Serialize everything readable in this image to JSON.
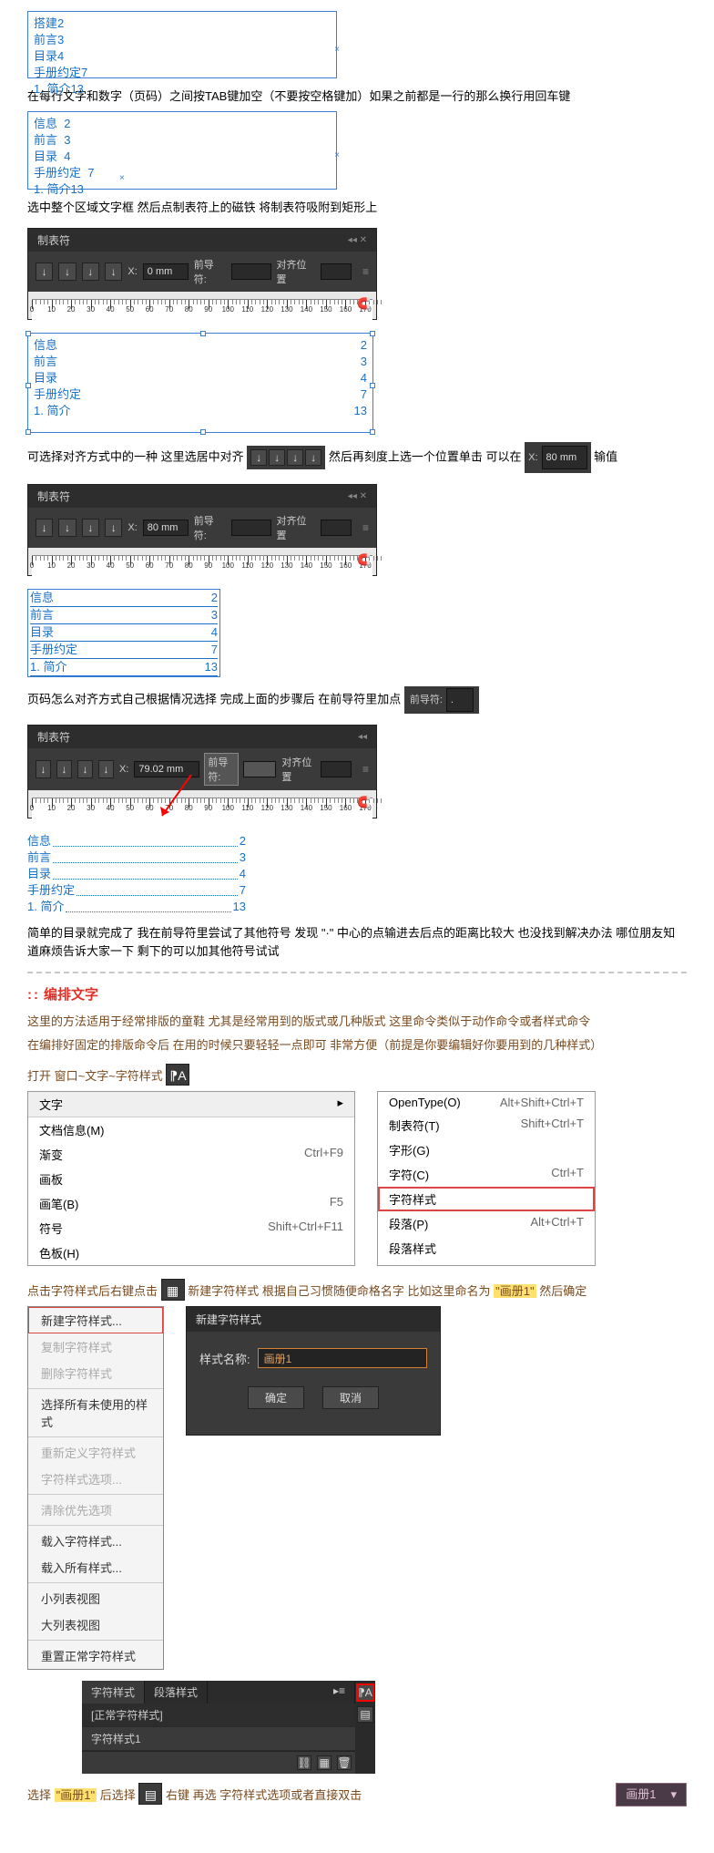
{
  "frame1": {
    "lines": [
      "搭建2",
      "前言3",
      "目录4",
      "手册约定7",
      "1. 简介13"
    ]
  },
  "para1": "在每行文字和数字（页码）之间按TAB键加空（不要按空格键加）如果之前都是一行的那么换行用回车键",
  "frame2": {
    "lines": [
      "信息  2",
      "前言  3",
      "目录  4",
      "手册约定  7",
      "1. 简介13"
    ]
  },
  "para2": "选中整个区域文字框 然后点制表符上的磁铁 将制表符吸附到矩形上",
  "tabpanel": {
    "title": "制表符",
    "x_label": "X:",
    "x_val_0": "0 mm",
    "leader_label": "前导符:",
    "alignpos_label": "对齐位置",
    "ruler_start": 0,
    "ruler_end": 170,
    "ruler_step": 10
  },
  "frame3": {
    "rows": [
      {
        "label": "信息",
        "page": "2"
      },
      {
        "label": "前言",
        "page": "3"
      },
      {
        "label": "目录",
        "page": "4"
      },
      {
        "label": "手册约定",
        "page": "7"
      },
      {
        "label": "1. 简介",
        "page": "13"
      }
    ]
  },
  "para3_start": "可选择对齐方式中的一种 这里选居中对齐",
  "para3_mid": "然后再刻度上选一个位置单击 可以在",
  "para3_end": "输值",
  "x_chip_val": "80 mm",
  "tabpanel2_xval": "80 mm",
  "frame4": {
    "rows": [
      {
        "label": "信息",
        "page": "2"
      },
      {
        "label": "前言",
        "page": "3"
      },
      {
        "label": "目录",
        "page": "4"
      },
      {
        "label": "手册约定",
        "page": "7"
      },
      {
        "label": "1. 简介",
        "page": "13"
      }
    ]
  },
  "para4": "页码怎么对齐方式自己根据情况选择  完成上面的步骤后 在前导符里加点",
  "leader_chip_label": "前导符:",
  "leader_chip_val": ".",
  "tabpanel3_xval": "79.02 mm",
  "frame5": {
    "rows": [
      {
        "label": "信息",
        "page": "2"
      },
      {
        "label": "前言",
        "page": "3"
      },
      {
        "label": "目录",
        "page": "4"
      },
      {
        "label": "手册约定",
        "page": "7"
      },
      {
        "label": "1. 简介",
        "page": "13"
      }
    ]
  },
  "para5": "简单的目录就完成了 我在前导符里尝试了其他符号 发现 \"·\" 中心的点输进去后点的距离比较大 也没找到解决办法 哪位朋友知道麻烦告诉大家一下 剩下的可以加其他符号试试",
  "heading_format": "编排文字",
  "para6_1": "这里的方法适用于经常排版的童鞋 尤其是经常用到的版式或几种版式 这里命令类似于动作命令或者样式命令",
  "para6_2": "在编排好固定的排版命令后 在用的时候只要轻轻一点即可 非常方便（前提是你要编辑好你要用到的几种样式）",
  "open_line": "打开  窗口~文字~字符样式",
  "menu_left": {
    "title": "文字",
    "items": [
      {
        "label": "文档信息(M)",
        "sc": ""
      },
      {
        "label": "渐变",
        "sc": "Ctrl+F9"
      },
      {
        "label": "画板",
        "sc": ""
      },
      {
        "label": "画笔(B)",
        "sc": "F5"
      },
      {
        "label": "符号",
        "sc": "Shift+Ctrl+F11"
      },
      {
        "label": "色板(H)",
        "sc": ""
      }
    ]
  },
  "menu_right": {
    "items": [
      {
        "label": "OpenType(O)",
        "sc": "Alt+Shift+Ctrl+T"
      },
      {
        "label": "制表符(T)",
        "sc": "Shift+Ctrl+T"
      },
      {
        "label": "字形(G)",
        "sc": ""
      },
      {
        "label": "字符(C)",
        "sc": "Ctrl+T"
      },
      {
        "label": "字符样式",
        "sc": "",
        "boxed": true
      },
      {
        "label": "段落(P)",
        "sc": "Alt+Ctrl+T"
      },
      {
        "label": "段落样式",
        "sc": ""
      }
    ]
  },
  "para7": "点击字符样式后右键点击",
  "para7_mid": "新建字符样式 根据自己习惯随便命格名字 比如这里命名为",
  "para7_name": "\"画册1\"",
  "para7_end": "然后确定",
  "ctx": {
    "items": [
      {
        "label": "新建字符样式...",
        "boxed": true
      },
      {
        "label": "复制字符样式",
        "disabled": true
      },
      {
        "label": "删除字符样式",
        "disabled": true
      },
      {
        "sep": true
      },
      {
        "label": "选择所有未使用的样式"
      },
      {
        "sep": true
      },
      {
        "label": "重新定义字符样式",
        "disabled": true
      },
      {
        "label": "字符样式选项...",
        "disabled": true
      },
      {
        "sep": true
      },
      {
        "label": "清除优先选项",
        "disabled": true
      },
      {
        "sep": true
      },
      {
        "label": "载入字符样式..."
      },
      {
        "label": "载入所有样式..."
      },
      {
        "sep": true
      },
      {
        "label": "小列表视图"
      },
      {
        "label": "大列表视图"
      },
      {
        "sep": true
      },
      {
        "label": "重置正常字符样式"
      }
    ]
  },
  "dialog": {
    "title": "新建字符样式",
    "field_label": "样式名称:",
    "field_value": "画册1",
    "ok": "确定",
    "cancel": "取消"
  },
  "char_styles": {
    "tab1": "字符样式",
    "tab2": "段落样式",
    "items": [
      "[正常字符样式]",
      "字符样式1"
    ]
  },
  "para8_1": "选择",
  "para8_q1": "\"画册1\"",
  "para8_2": "后选择",
  "para8_3": "右键  再选 字符样式选项或者直接双击",
  "name_chip": "画册1",
  "colors": {
    "link": "#1a71c8",
    "panel": "#3a3a3a",
    "brown": "#7a4a1e",
    "red": "#e03028"
  }
}
